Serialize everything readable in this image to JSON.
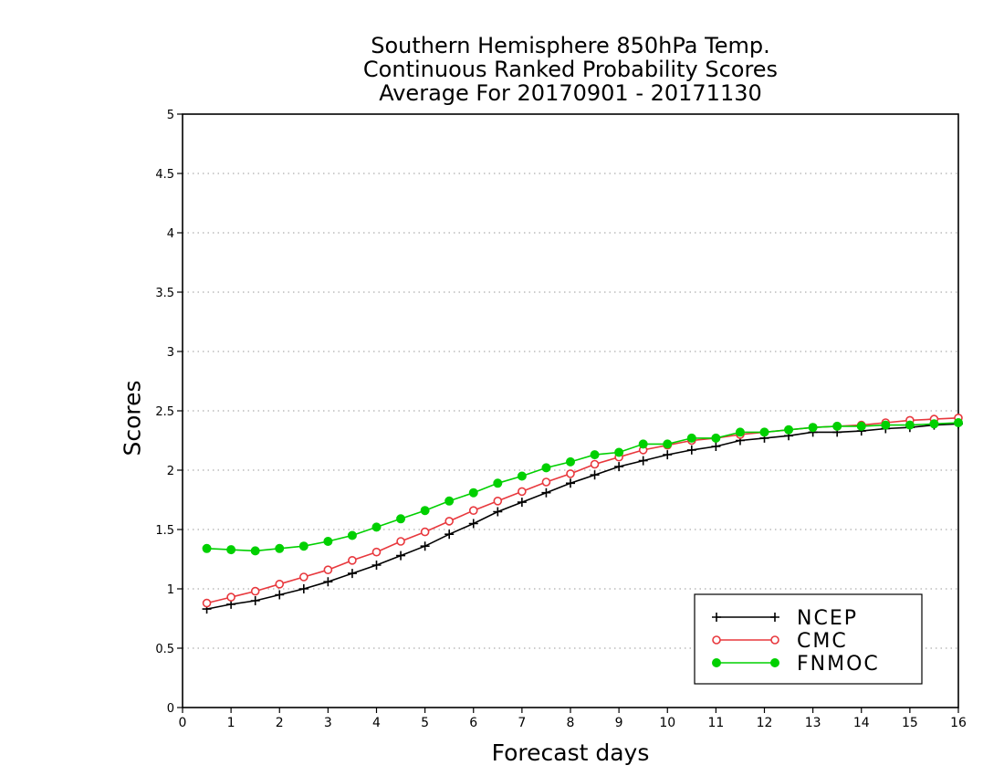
{
  "chart_data": {
    "type": "line",
    "title": [
      "Southern Hemisphere 850hPa Temp.",
      "Continuous Ranked Probability Scores",
      "Average For 20170901 - 20171130"
    ],
    "xlabel": "Forecast days",
    "ylabel": "Scores",
    "xlim": [
      0,
      16
    ],
    "ylim": [
      0,
      5
    ],
    "xticks": [
      "0",
      "1",
      "2",
      "3",
      "4",
      "5",
      "6",
      "7",
      "8",
      "9",
      "10",
      "11",
      "12",
      "13",
      "14",
      "15",
      "16"
    ],
    "yticks": [
      "0",
      "0.5",
      "1",
      "1.5",
      "2",
      "2.5",
      "3",
      "3.5",
      "4",
      "4.5",
      "5"
    ],
    "grid": "horizontal dotted",
    "legend_position": "bottom-right",
    "x": [
      0.5,
      1,
      1.5,
      2,
      2.5,
      3,
      3.5,
      4,
      4.5,
      5,
      5.5,
      6,
      6.5,
      7,
      7.5,
      8,
      8.5,
      9,
      9.5,
      10,
      10.5,
      11,
      11.5,
      12,
      12.5,
      13,
      13.5,
      14,
      14.5,
      15,
      15.5,
      16
    ],
    "series": [
      {
        "name": "NCEP",
        "color": "#000000",
        "marker": "plus",
        "values": [
          0.83,
          0.87,
          0.9,
          0.95,
          1.0,
          1.06,
          1.13,
          1.2,
          1.28,
          1.36,
          1.46,
          1.55,
          1.65,
          1.73,
          1.81,
          1.89,
          1.96,
          2.03,
          2.08,
          2.13,
          2.17,
          2.2,
          2.25,
          2.27,
          2.29,
          2.32,
          2.32,
          2.33,
          2.35,
          2.36,
          2.38,
          2.39
        ]
      },
      {
        "name": "CMC",
        "color": "#e8383d",
        "marker": "open-circle",
        "values": [
          0.88,
          0.93,
          0.98,
          1.04,
          1.1,
          1.16,
          1.24,
          1.31,
          1.4,
          1.48,
          1.57,
          1.66,
          1.74,
          1.82,
          1.9,
          1.97,
          2.05,
          2.11,
          2.17,
          2.21,
          2.25,
          2.27,
          2.3,
          2.32,
          2.34,
          2.36,
          2.37,
          2.38,
          2.4,
          2.42,
          2.43,
          2.44
        ]
      },
      {
        "name": "FNMOC",
        "color": "#00d000",
        "marker": "filled-circle",
        "values": [
          1.34,
          1.33,
          1.32,
          1.34,
          1.36,
          1.4,
          1.45,
          1.52,
          1.59,
          1.66,
          1.74,
          1.81,
          1.89,
          1.95,
          2.02,
          2.07,
          2.13,
          2.15,
          2.22,
          2.22,
          2.27,
          2.27,
          2.32,
          2.32,
          2.34,
          2.36,
          2.37,
          2.37,
          2.38,
          2.38,
          2.39,
          2.4
        ]
      }
    ]
  }
}
